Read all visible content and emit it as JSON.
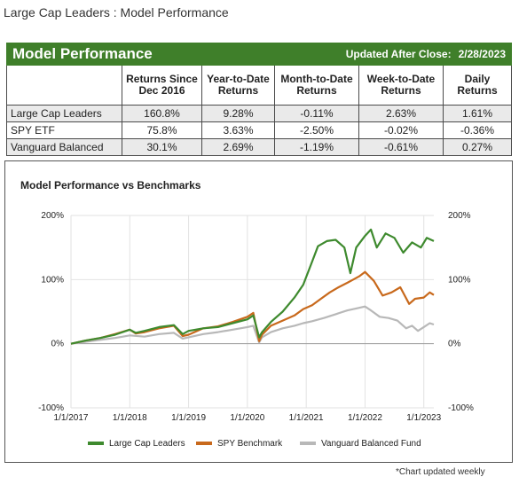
{
  "page": {
    "title": "Large Cap Leaders : Model Performance"
  },
  "table": {
    "banner_title": "Model Performance",
    "updated_label": "Updated After Close:",
    "updated_date": "2/28/2023",
    "headers": [
      "",
      "Returns Since Dec 2016",
      "Year-to-Date Returns",
      "Month-to-Date Returns",
      "Week-to-Date Returns",
      "Daily Returns"
    ],
    "rows": [
      {
        "name": "Large Cap Leaders",
        "since": "160.8%",
        "ytd": "9.28%",
        "mtd": "-0.11%",
        "wtd": "2.63%",
        "daily": "1.61%"
      },
      {
        "name": "SPY ETF",
        "since": "75.8%",
        "ytd": "3.63%",
        "mtd": "-2.50%",
        "wtd": "-0.02%",
        "daily": "-0.36%"
      },
      {
        "name": "Vanguard Balanced",
        "since": "30.1%",
        "ytd": "2.69%",
        "mtd": "-1.19%",
        "wtd": "-0.61%",
        "daily": "0.27%"
      }
    ]
  },
  "footnote": "*Chart updated weekly",
  "chart_data": {
    "type": "line",
    "title": "Model Performance vs Benchmarks",
    "xlabel": "",
    "ylabel": "",
    "ylim": [
      -100,
      200
    ],
    "xlim": [
      2017.0,
      2023.17
    ],
    "y_ticks": [
      "200%",
      "100%",
      "0%",
      "-100%"
    ],
    "y_tick_values": [
      200,
      100,
      0,
      -100
    ],
    "x_ticks": [
      "1/1/2017",
      "1/1/2018",
      "1/1/2019",
      "1/1/2020",
      "1/1/2021",
      "1/1/2022",
      "1/1/2023"
    ],
    "x_tick_values": [
      2017,
      2018,
      2019,
      2020,
      2021,
      2022,
      2023
    ],
    "grid": true,
    "legend": "bottom",
    "series": [
      {
        "name": "Large Cap Leaders",
        "color": "#3e8a2e",
        "x": [
          2017.0,
          2017.25,
          2017.5,
          2017.75,
          2018.0,
          2018.1,
          2018.25,
          2018.5,
          2018.75,
          2018.9,
          2019.0,
          2019.25,
          2019.5,
          2019.75,
          2020.0,
          2020.1,
          2020.2,
          2020.25,
          2020.4,
          2020.6,
          2020.8,
          2020.95,
          2021.1,
          2021.2,
          2021.35,
          2021.5,
          2021.65,
          2021.75,
          2021.85,
          2022.0,
          2022.1,
          2022.2,
          2022.35,
          2022.5,
          2022.65,
          2022.8,
          2022.95,
          2023.05,
          2023.17
        ],
        "y": [
          0,
          5,
          9,
          14,
          22,
          17,
          20,
          26,
          29,
          15,
          20,
          24,
          26,
          32,
          38,
          44,
          10,
          18,
          34,
          50,
          72,
          92,
          128,
          152,
          160,
          162,
          150,
          110,
          150,
          168,
          178,
          150,
          172,
          165,
          142,
          158,
          150,
          165,
          160
        ]
      },
      {
        "name": "SPY Benchmark",
        "color": "#c8691c",
        "x": [
          2017.0,
          2017.25,
          2017.5,
          2017.75,
          2018.0,
          2018.1,
          2018.25,
          2018.5,
          2018.75,
          2018.9,
          2019.0,
          2019.25,
          2019.5,
          2019.75,
          2020.0,
          2020.1,
          2020.2,
          2020.25,
          2020.4,
          2020.6,
          2020.8,
          2020.95,
          2021.1,
          2021.25,
          2021.4,
          2021.55,
          2021.7,
          2021.8,
          2021.9,
          2022.0,
          2022.15,
          2022.3,
          2022.45,
          2022.6,
          2022.75,
          2022.85,
          2023.0,
          2023.1,
          2023.17
        ],
        "y": [
          0,
          5,
          9,
          15,
          22,
          16,
          18,
          24,
          28,
          12,
          14,
          24,
          27,
          34,
          42,
          48,
          4,
          14,
          28,
          36,
          44,
          54,
          60,
          70,
          80,
          88,
          95,
          100,
          105,
          112,
          98,
          75,
          80,
          88,
          62,
          70,
          72,
          80,
          76
        ]
      },
      {
        "name": "Vanguard Balanced Fund",
        "color": "#b8b8b8",
        "x": [
          2017.0,
          2017.25,
          2017.5,
          2017.75,
          2018.0,
          2018.25,
          2018.5,
          2018.75,
          2018.9,
          2019.0,
          2019.25,
          2019.5,
          2019.75,
          2020.0,
          2020.1,
          2020.2,
          2020.25,
          2020.4,
          2020.6,
          2020.8,
          2020.95,
          2021.1,
          2021.3,
          2021.5,
          2021.7,
          2021.85,
          2022.0,
          2022.1,
          2022.25,
          2022.4,
          2022.55,
          2022.7,
          2022.8,
          2022.9,
          2023.0,
          2023.1,
          2023.17
        ],
        "y": [
          0,
          3,
          6,
          9,
          13,
          11,
          15,
          17,
          8,
          10,
          15,
          18,
          22,
          26,
          28,
          2,
          10,
          18,
          24,
          28,
          32,
          35,
          40,
          46,
          52,
          55,
          58,
          52,
          42,
          40,
          36,
          24,
          28,
          20,
          26,
          32,
          30
        ]
      }
    ]
  }
}
